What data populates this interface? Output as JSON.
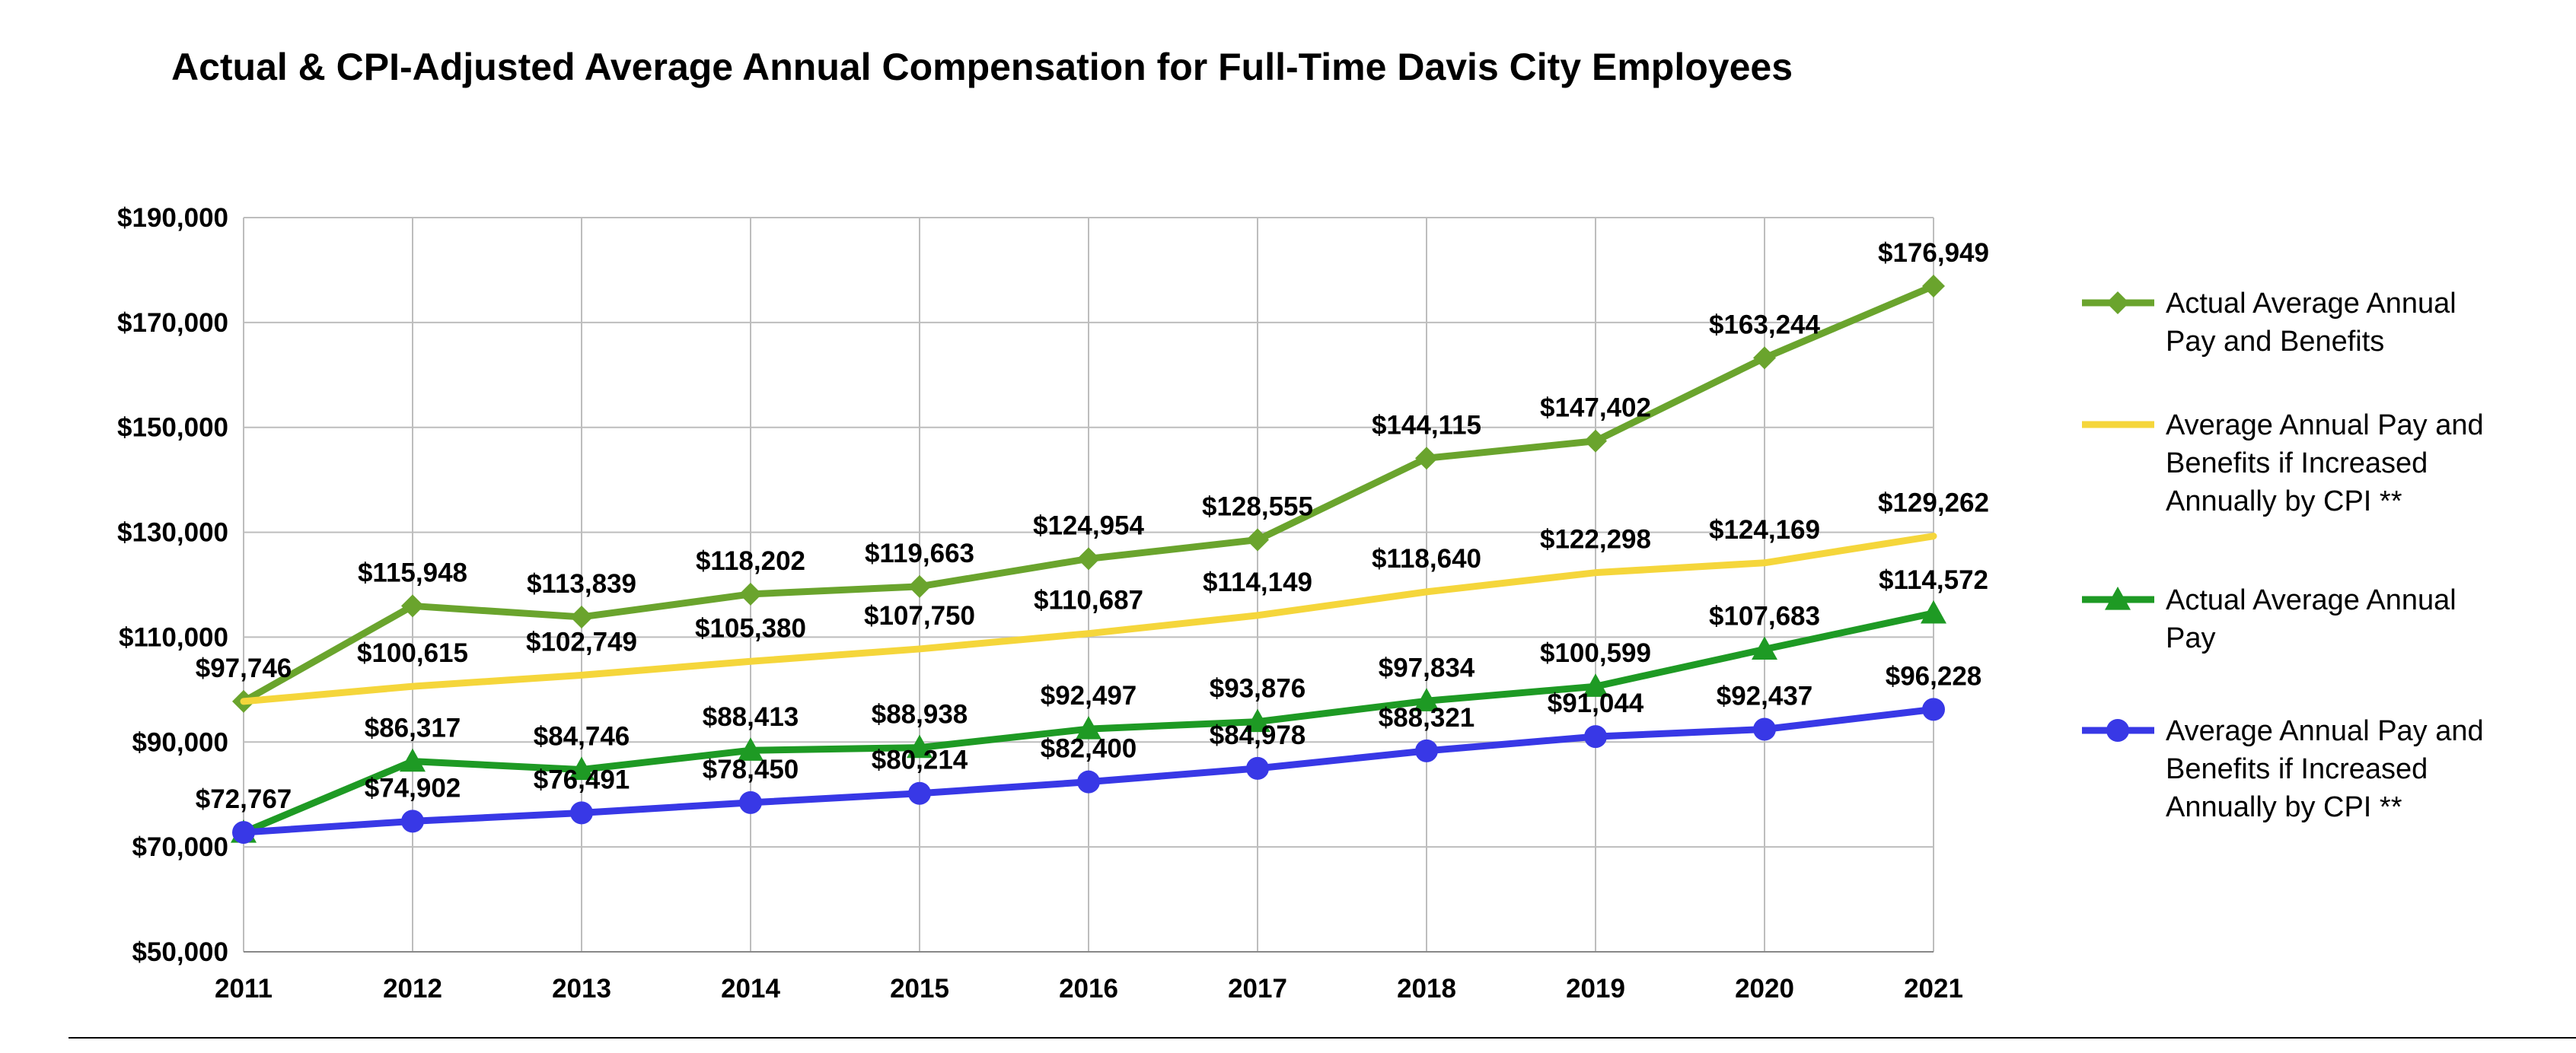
{
  "chart_data": {
    "type": "line",
    "title": "Actual & CPI-Adjusted Average Annual Compensation for Full-Time Davis City Employees",
    "xlabel": "",
    "ylabel": "",
    "categories": [
      "2011",
      "2012",
      "2013",
      "2014",
      "2015",
      "2016",
      "2017",
      "2018",
      "2019",
      "2020",
      "2021"
    ],
    "ylim": [
      50000,
      190000
    ],
    "yticks": [
      50000,
      70000,
      90000,
      110000,
      130000,
      150000,
      170000,
      190000
    ],
    "ytick_labels": [
      "$50,000",
      "$70,000",
      "$90,000",
      "$110,000",
      "$130,000",
      "$150,000",
      "$170,000",
      "$190,000"
    ],
    "grid": "horizontal",
    "legend_position": "right",
    "series": [
      {
        "name": "Actual Average Annual Pay and Benefits",
        "legend_lines": [
          "Actual Average Annual",
          "Pay and Benefits"
        ],
        "color": "#6aa42d",
        "marker": "diamond",
        "values": [
          97746,
          115948,
          113839,
          118202,
          119663,
          124954,
          128555,
          144115,
          147402,
          163244,
          176949
        ],
        "labels": [
          "$97,746",
          "$115,948",
          "$113,839",
          "$118,202",
          "$119,663",
          "$124,954",
          "$128,555",
          "$144,115",
          "$147,402",
          "$163,244",
          "$176,949"
        ]
      },
      {
        "name": "Average Annual Pay and Benefits if Increased Annually by CPI **",
        "legend_lines": [
          "Average Annual Pay and",
          "Benefits if Increased",
          "Annually by CPI **"
        ],
        "color": "#f5d63b",
        "marker": "none",
        "values": [
          97746,
          100615,
          102749,
          105380,
          107750,
          110687,
          114149,
          118640,
          122298,
          124169,
          129262
        ],
        "labels": [
          "",
          "$100,615",
          "$102,749",
          "$105,380",
          "$107,750",
          "$110,687",
          "$114,149",
          "$118,640",
          "$122,298",
          "$124,169",
          "$129,262"
        ]
      },
      {
        "name": "Actual Average Annual Pay",
        "legend_lines": [
          "Actual Average Annual",
          "Pay"
        ],
        "color": "#1e9a24",
        "marker": "triangle",
        "values": [
          72767,
          86317,
          84746,
          88413,
          88938,
          92497,
          93876,
          97834,
          100599,
          107683,
          114572
        ],
        "labels": [
          "$72,767",
          "$86,317",
          "$84,746",
          "$88,413",
          "$88,938",
          "$92,497",
          "$93,876",
          "$97,834",
          "$100,599",
          "$107,683",
          "$114,572"
        ]
      },
      {
        "name": "Average Annual Pay and Benefits if Increased Annually by CPI **",
        "legend_lines": [
          "Average Annual Pay and",
          "Benefits if Increased",
          "Annually by CPI **"
        ],
        "color": "#3838e6",
        "marker": "circle",
        "values": [
          72767,
          74902,
          76491,
          78450,
          80214,
          82400,
          84978,
          88321,
          91044,
          92437,
          96228
        ],
        "labels": [
          "",
          "$74,902",
          "$76,491",
          "$78,450",
          "$80,214",
          "$82,400",
          "$84,978",
          "$88,321",
          "$91,044",
          "$92,437",
          "$96,228"
        ]
      }
    ]
  }
}
